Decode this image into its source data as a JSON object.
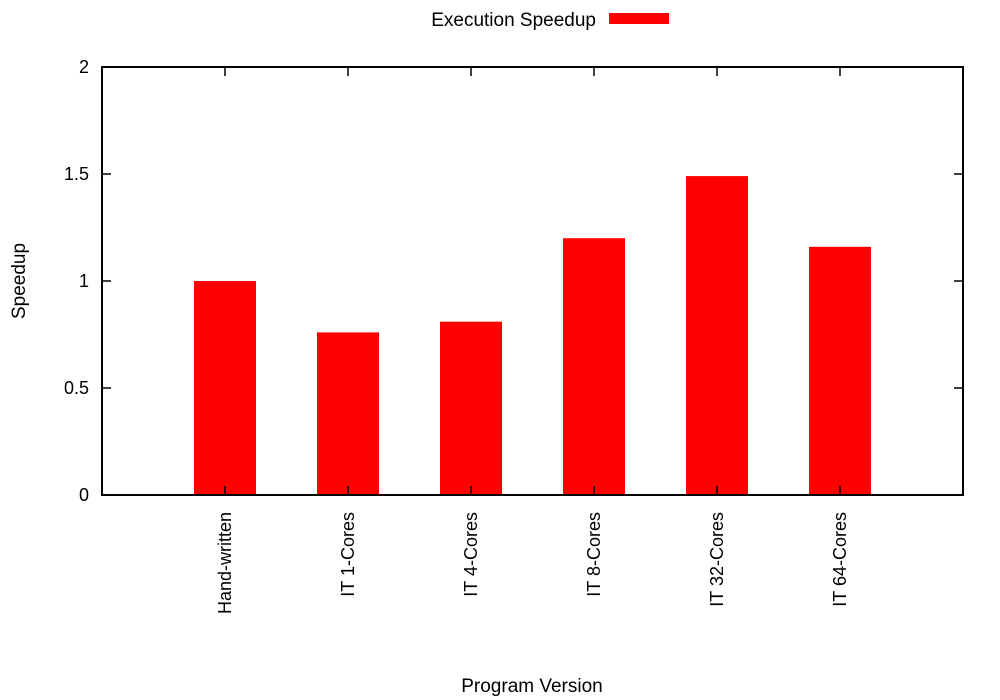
{
  "chart_data": {
    "type": "bar",
    "title": "",
    "xlabel": "Program Version",
    "ylabel": "Speedup",
    "ylim": [
      0,
      2
    ],
    "yticks": [
      0,
      0.5,
      1,
      1.5,
      2
    ],
    "ytick_labels": [
      "0",
      "0.5",
      "1",
      "1.5",
      "2"
    ],
    "categories": [
      "Hand-written",
      "IT 1-Cores",
      "IT 4-Cores",
      "IT 8-Cores",
      "IT 32-Cores",
      "IT 64-Cores"
    ],
    "series": [
      {
        "name": "Execution Speedup",
        "values": [
          1.0,
          0.76,
          0.81,
          1.2,
          1.49,
          1.16
        ],
        "color": "#ff0000"
      }
    ],
    "legend": "top-center",
    "grid": false
  }
}
